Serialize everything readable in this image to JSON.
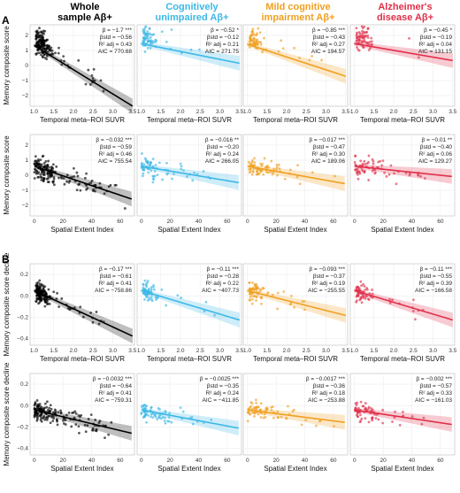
{
  "columns": [
    {
      "title": "Whole\nsample Aβ+",
      "color": "#000000"
    },
    {
      "title": "Cognitively\nunimpaired Aβ+",
      "color": "#3db8e6"
    },
    {
      "title": "Mild cognitive\nimpairment Aβ+",
      "color": "#f0a020"
    },
    {
      "title": "Alzheimer's\ndisease Aβ+",
      "color": "#e0304a"
    }
  ],
  "sections": [
    {
      "label": "A",
      "ylabel": "Memory composite score"
    },
    {
      "label": "B",
      "ylabel": "Memory composite score decline"
    }
  ],
  "xlabels": {
    "suvr": "Temporal meta–ROI SUVR",
    "sei": "Spatial Extent Index"
  },
  "chart_data": [
    {
      "type": "scatter",
      "section": "A",
      "col": 0,
      "xkey": "suvr",
      "slope": -1.7,
      "sig": "***",
      "bstd": "−0.56",
      "r2": "0.43",
      "aic": "770.68"
    },
    {
      "type": "scatter",
      "section": "A",
      "col": 1,
      "xkey": "suvr",
      "slope": -0.52,
      "sig": "*",
      "bstd": "−0.12",
      "r2": "0.21",
      "aic": "271.75"
    },
    {
      "type": "scatter",
      "section": "A",
      "col": 2,
      "xkey": "suvr",
      "slope": -0.85,
      "sig": "***",
      "bstd": "−0.43",
      "r2": "0.27",
      "aic": "194.57"
    },
    {
      "type": "scatter",
      "section": "A",
      "col": 3,
      "xkey": "suvr",
      "slope": -0.45,
      "sig": "*",
      "bstd": "−0.19",
      "r2": "0.04",
      "aic": "131.15"
    },
    {
      "type": "scatter",
      "section": "A",
      "col": 0,
      "xkey": "sei",
      "slope": -0.032,
      "sig": "***",
      "bstd": "−0.59",
      "r2": "0.46",
      "aic": "755.54"
    },
    {
      "type": "scatter",
      "section": "A",
      "col": 1,
      "xkey": "sei",
      "slope": -0.016,
      "sig": "**",
      "bstd": "−0.20",
      "r2": "0.24",
      "aic": "266.05"
    },
    {
      "type": "scatter",
      "section": "A",
      "col": 2,
      "xkey": "sei",
      "slope": -0.017,
      "sig": "***",
      "bstd": "−0.47",
      "r2": "0.30",
      "aic": "189.06"
    },
    {
      "type": "scatter",
      "section": "A",
      "col": 3,
      "xkey": "sei",
      "slope": -0.01,
      "sig": "**",
      "bstd": "−0.40",
      "r2": "0.06",
      "aic": "129.27"
    },
    {
      "type": "scatter",
      "section": "B",
      "col": 0,
      "xkey": "suvr",
      "slope": -0.17,
      "sig": "***",
      "bstd": "−0.61",
      "r2": "0.41",
      "aic": "−758.86"
    },
    {
      "type": "scatter",
      "section": "B",
      "col": 1,
      "xkey": "suvr",
      "slope": -0.11,
      "sig": "***",
      "bstd": "−0.28",
      "r2": "0.22",
      "aic": "−407.73"
    },
    {
      "type": "scatter",
      "section": "B",
      "col": 2,
      "xkey": "suvr",
      "slope": -0.093,
      "sig": "***",
      "bstd": "−0.37",
      "r2": "0.19",
      "aic": "−255.55"
    },
    {
      "type": "scatter",
      "section": "B",
      "col": 3,
      "xkey": "suvr",
      "slope": -0.11,
      "sig": "***",
      "bstd": "−0.55",
      "r2": "0.39",
      "aic": "−166.58"
    },
    {
      "type": "scatter",
      "section": "B",
      "col": 0,
      "xkey": "sei",
      "slope": -0.0032,
      "sig": "***",
      "bstd": "−0.64",
      "r2": "0.41",
      "aic": "−759.31"
    },
    {
      "type": "scatter",
      "section": "B",
      "col": 1,
      "xkey": "sei",
      "slope": -0.0025,
      "sig": "***",
      "bstd": "−0.35",
      "r2": "0.24",
      "aic": "−411.85"
    },
    {
      "type": "scatter",
      "section": "B",
      "col": 2,
      "xkey": "sei",
      "slope": -0.0017,
      "sig": "***",
      "bstd": "−0.36",
      "r2": "0.18",
      "aic": "−253.88"
    },
    {
      "type": "scatter",
      "section": "B",
      "col": 3,
      "xkey": "sei",
      "slope": -0.002,
      "sig": "***",
      "bstd": "−0.57",
      "r2": "0.33",
      "aic": "−161.03"
    }
  ],
  "axes": {
    "suvr": {
      "ticks": [
        "1.0",
        "1.5",
        "2.0",
        "2.5",
        "3.0",
        "3.5"
      ],
      "range": [
        0.9,
        3.55
      ]
    },
    "sei": {
      "ticks": [
        "0",
        "20",
        "40",
        "60"
      ],
      "range": [
        -3,
        70
      ]
    },
    "yA": {
      "ticks": [
        "2",
        "1",
        "0",
        "−1",
        "−2"
      ]
    },
    "yB": {
      "ticks": [
        "0.2",
        "0.0",
        "−0.2",
        "−0.4"
      ]
    }
  }
}
